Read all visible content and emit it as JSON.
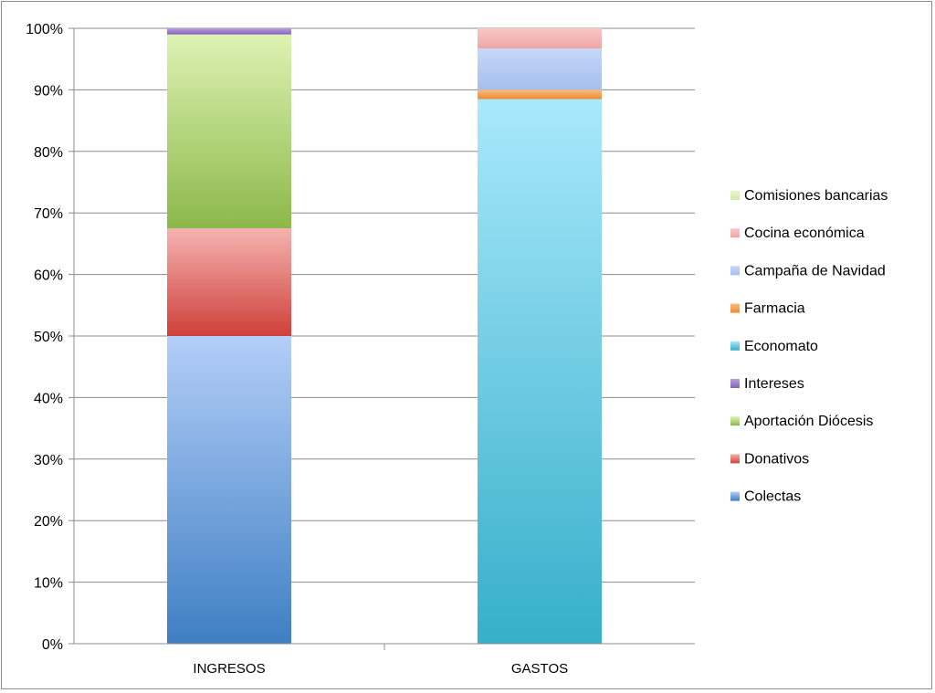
{
  "chart_data": {
    "type": "bar",
    "stacked": true,
    "normalized": true,
    "categories": [
      "INGRESOS",
      "GASTOS"
    ],
    "yticks": [
      "0%",
      "10%",
      "20%",
      "30%",
      "40%",
      "50%",
      "60%",
      "70%",
      "80%",
      "90%",
      "100%"
    ],
    "ylim": [
      0,
      100
    ],
    "grid": true,
    "legend_position": "right",
    "series": [
      {
        "name": "Colectas",
        "values": [
          50.0,
          0
        ],
        "color": "#3f7fc3",
        "color_light": "#b3cef8"
      },
      {
        "name": "Donativos",
        "values": [
          17.5,
          0
        ],
        "color": "#cf403b",
        "color_light": "#f5b3b0"
      },
      {
        "name": "Aportación Diócesis",
        "values": [
          31.5,
          0
        ],
        "color": "#8cb84a",
        "color_light": "#ddf3b3"
      },
      {
        "name": "Intereses",
        "values": [
          1.0,
          0
        ],
        "color": "#8663b8",
        "color_light": "#b9a0dd"
      },
      {
        "name": "Economato",
        "values": [
          0,
          88.5
        ],
        "color": "#36afc9",
        "color_light": "#a9e8fc"
      },
      {
        "name": "Farmacia",
        "values": [
          0,
          1.5
        ],
        "color": "#f08a30",
        "color_light": "#fbbd7e"
      },
      {
        "name": "Campaña de Navidad",
        "values": [
          0,
          6.7
        ],
        "color": "#a5bfee",
        "color_light": "#c6d7f8"
      },
      {
        "name": "Cocina económica",
        "values": [
          0,
          3.3
        ],
        "color": "#eea6a4",
        "color_light": "#f8c7c5"
      },
      {
        "name": "Comisiones bancarias",
        "values": [
          0,
          0
        ],
        "color": "#cfe9a6",
        "color_light": "#e8f6cf"
      }
    ],
    "legend_order": [
      "Comisiones bancarias",
      "Cocina económica",
      "Campaña de Navidad",
      "Farmacia",
      "Economato",
      "Intereses",
      "Aportación Diócesis",
      "Donativos",
      "Colectas"
    ]
  }
}
